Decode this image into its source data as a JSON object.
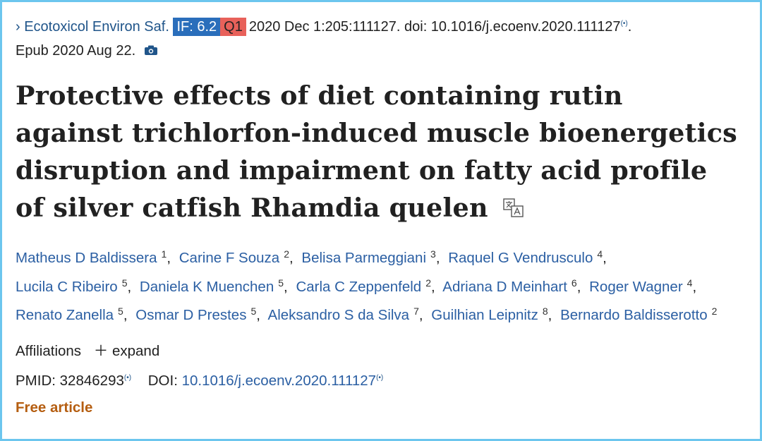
{
  "journal": {
    "name": "Ecotoxicol Environ Saf.",
    "impact_factor": "IF: 6.2",
    "quartile": "Q1",
    "citation": "2020 Dec 1:205:111127. doi: 10.1016/j.ecoenv.2020.111127",
    "citation_end": ".",
    "epub": "Epub 2020 Aug 22."
  },
  "title": "Protective effects of diet containing rutin against trichlorfon-induced muscle bioenergetics disruption and impairment on fatty acid profile of silver catfish Rhamdia quelen",
  "author_separator": ",",
  "authors": [
    {
      "name": "Matheus D Baldissera",
      "affiliation": "1"
    },
    {
      "name": "Carine F Souza",
      "affiliation": "2"
    },
    {
      "name": "Belisa Parmeggiani",
      "affiliation": "3"
    },
    {
      "name": "Raquel G Vendrusculo",
      "affiliation": "4"
    },
    {
      "name": "Lucila C Ribeiro",
      "affiliation": "5"
    },
    {
      "name": "Daniela K Muenchen",
      "affiliation": "5"
    },
    {
      "name": "Carla C Zeppenfeld",
      "affiliation": "2"
    },
    {
      "name": "Adriana D Meinhart",
      "affiliation": "6"
    },
    {
      "name": "Roger Wagner",
      "affiliation": "4"
    },
    {
      "name": "Renato Zanella",
      "affiliation": "5"
    },
    {
      "name": "Osmar D Prestes",
      "affiliation": "5"
    },
    {
      "name": "Aleksandro S da Silva",
      "affiliation": "7"
    },
    {
      "name": "Guilhian Leipnitz",
      "affiliation": "8"
    },
    {
      "name": "Bernardo Baldisserotto",
      "affiliation": "2"
    }
  ],
  "affiliations": {
    "label": "Affiliations",
    "expand": "expand"
  },
  "identifiers": {
    "pmid_label": "PMID:",
    "pmid": "32846293",
    "doi_label": "DOI:",
    "doi": "10.1016/j.ecoenv.2020.111127"
  },
  "free_article": "Free article"
}
